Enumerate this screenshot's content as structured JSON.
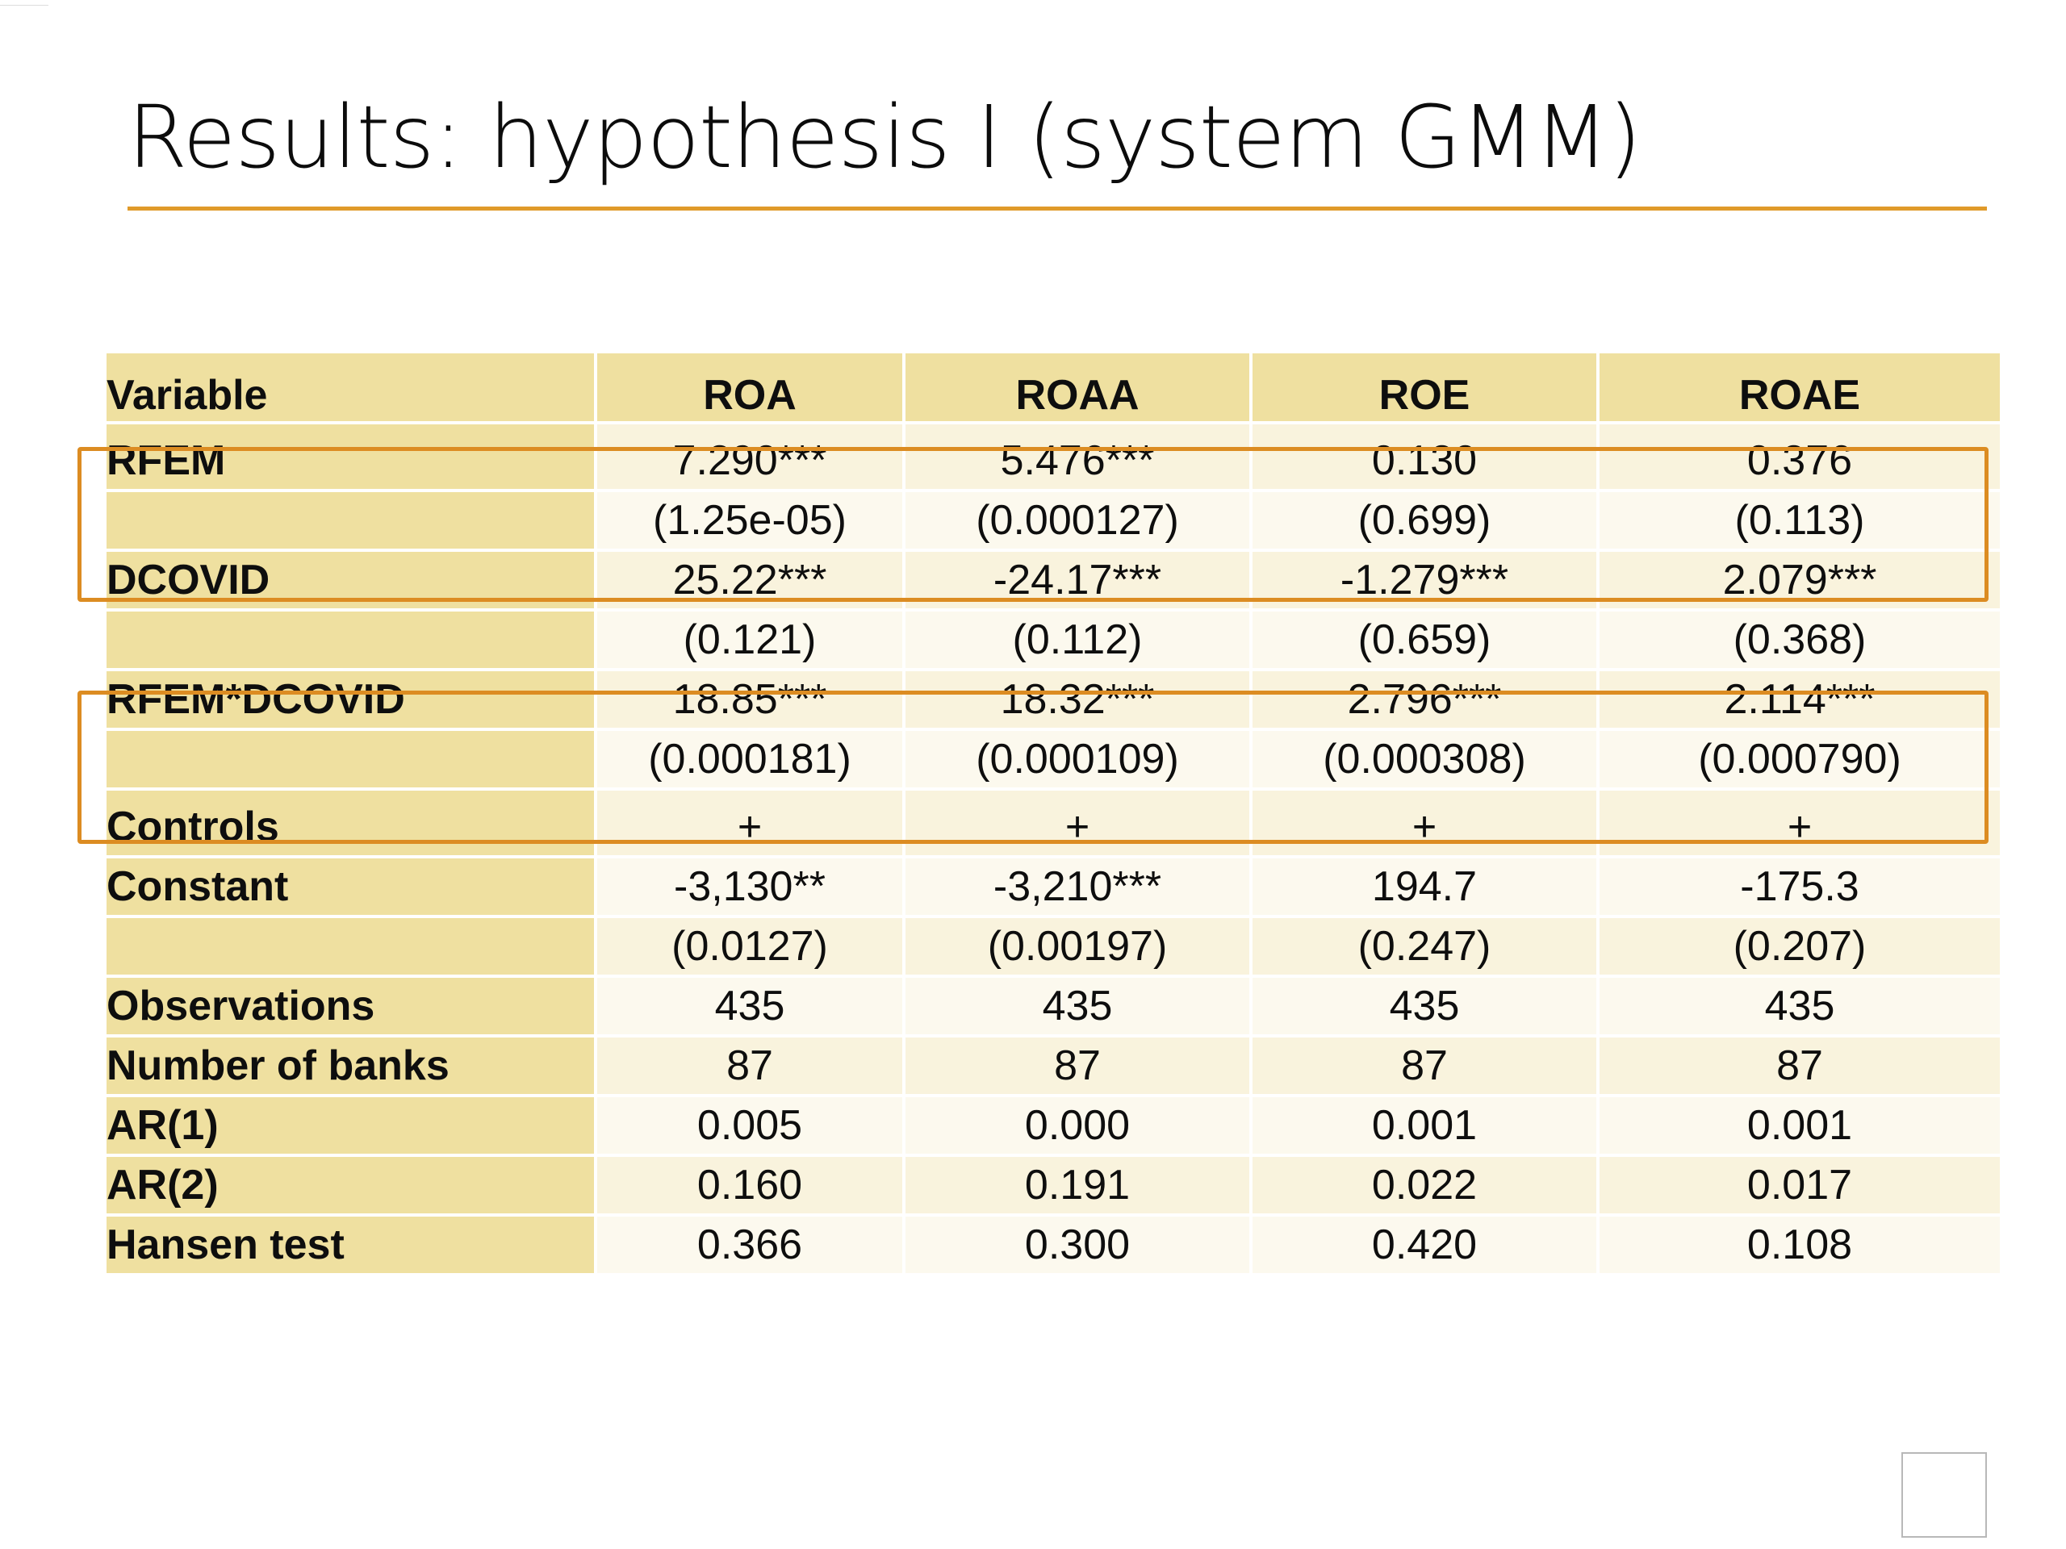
{
  "slide": {
    "title": "Results: hypothesis I (system GMM)"
  },
  "table": {
    "headers": [
      "Variable",
      "ROA",
      "ROAA",
      "ROE",
      "ROAE"
    ],
    "rows": [
      [
        "RFEM",
        "7.290***",
        "5.476***",
        "0.130",
        "0.376"
      ],
      [
        "",
        "(1.25e-05)",
        "(0.000127)",
        "(0.699)",
        "(0.113)"
      ],
      [
        "DCOVID",
        "25.22***",
        "-24.17***",
        "-1.279***",
        "2.079***"
      ],
      [
        "",
        "(0.121)",
        "(0.112)",
        "(0.659)",
        "(0.368)"
      ],
      [
        "RFEM*DCOVID",
        "18.85***",
        "18.32***",
        "2.796***",
        "2.114***"
      ],
      [
        "",
        "(0.000181)",
        "(0.000109)",
        "(0.000308)",
        "(0.000790)"
      ],
      [
        "Controls",
        "+",
        "+",
        "+",
        "+"
      ],
      [
        "Constant",
        "-3,130**",
        "-3,210***",
        "194.7",
        "-175.3"
      ],
      [
        "",
        "(0.0127)",
        "(0.00197)",
        "(0.247)",
        "(0.207)"
      ],
      [
        "Observations",
        "435",
        "435",
        "435",
        "435"
      ],
      [
        "Number of banks",
        "87",
        "87",
        "87",
        "87"
      ],
      [
        "AR(1)",
        "0.005",
        "0.000",
        "0.001",
        "0.001"
      ],
      [
        "AR(2)",
        "0.160",
        "0.191",
        "0.022",
        "0.017"
      ],
      [
        "Hansen test",
        "0.366",
        "0.300",
        "0.420",
        "0.108"
      ]
    ]
  },
  "colors": {
    "accent": "#e09a2a",
    "highlight_border": "#dc8c22",
    "header_fill": "#efe0a0",
    "band_dark": "#f9f3dd",
    "band_light": "#fcf9ee"
  }
}
